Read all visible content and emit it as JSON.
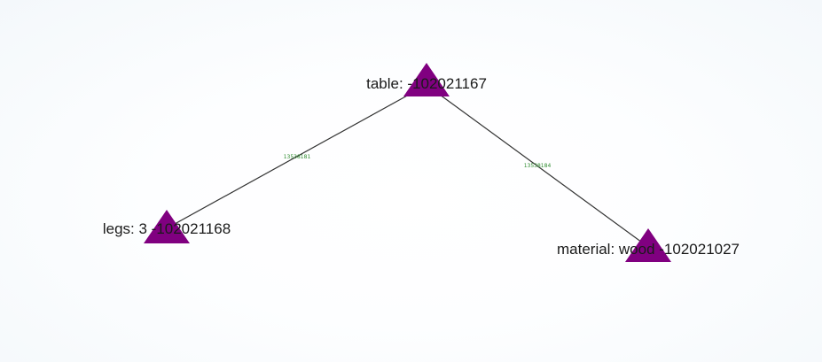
{
  "colors": {
    "node_fill": "#800080",
    "edge_stroke": "#333333",
    "edge_label": "#2e8b2e",
    "node_label": "#1a1a1a"
  },
  "graph": {
    "nodes": [
      {
        "id": "n-table",
        "label": "table:  -102021167",
        "shape": "triangle"
      },
      {
        "id": "n-legs",
        "label": "legs: 3 -102021168",
        "shape": "triangle"
      },
      {
        "id": "n-material",
        "label": "material: wood -102021027",
        "shape": "triangle"
      }
    ],
    "edges": [
      {
        "id": "e-legs",
        "source": "n-table",
        "target": "n-legs",
        "label": "13538181"
      },
      {
        "id": "e-material",
        "source": "n-table",
        "target": "n-material",
        "label": "13538184"
      }
    ]
  }
}
